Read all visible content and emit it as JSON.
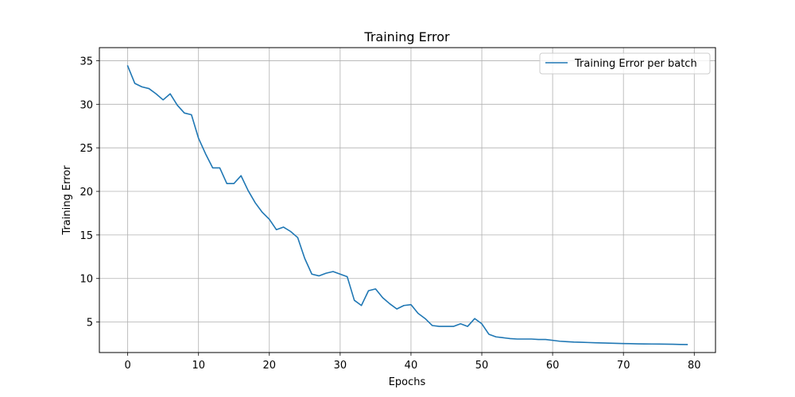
{
  "chart_data": {
    "type": "line",
    "title": "Training Error",
    "xlabel": "Epochs",
    "ylabel": "Training Error",
    "xlim": [
      -4,
      83
    ],
    "ylim": [
      1.5,
      36.5
    ],
    "xticks": [
      0,
      10,
      20,
      30,
      40,
      50,
      60,
      70,
      80
    ],
    "yticks": [
      5,
      10,
      15,
      20,
      25,
      30,
      35
    ],
    "grid": true,
    "legend_position": "top-right",
    "series": [
      {
        "name": "Training Error per batch",
        "color": "#1f77b4",
        "x": [
          0,
          1,
          2,
          3,
          4,
          5,
          6,
          7,
          8,
          9,
          10,
          11,
          12,
          13,
          14,
          15,
          16,
          17,
          18,
          19,
          20,
          21,
          22,
          23,
          24,
          25,
          26,
          27,
          28,
          29,
          30,
          31,
          32,
          33,
          34,
          35,
          36,
          37,
          38,
          39,
          40,
          41,
          42,
          43,
          44,
          45,
          46,
          47,
          48,
          49,
          50,
          51,
          52,
          53,
          54,
          55,
          56,
          57,
          58,
          59,
          60,
          61,
          62,
          63,
          64,
          65,
          66,
          67,
          68,
          69,
          70,
          71,
          72,
          73,
          74,
          75,
          76,
          77,
          78,
          79
        ],
        "y": [
          34.4,
          32.4,
          32.0,
          31.8,
          31.2,
          30.5,
          31.2,
          29.9,
          29.0,
          28.8,
          26.1,
          24.3,
          22.7,
          22.7,
          20.9,
          20.9,
          21.8,
          20.1,
          18.7,
          17.6,
          16.8,
          15.6,
          15.9,
          15.4,
          14.7,
          12.3,
          10.5,
          10.3,
          10.6,
          10.8,
          10.5,
          10.2,
          7.5,
          6.9,
          8.6,
          8.8,
          7.8,
          7.1,
          6.5,
          6.9,
          7.0,
          6.0,
          5.4,
          4.6,
          4.5,
          4.5,
          4.5,
          4.8,
          4.5,
          5.4,
          4.8,
          3.6,
          3.3,
          3.2,
          3.1,
          3.05,
          3.05,
          3.05,
          3.0,
          3.0,
          2.9,
          2.8,
          2.75,
          2.7,
          2.68,
          2.65,
          2.62,
          2.6,
          2.58,
          2.55,
          2.53,
          2.52,
          2.5,
          2.49,
          2.48,
          2.47,
          2.46,
          2.45,
          2.43,
          2.42
        ]
      }
    ]
  }
}
